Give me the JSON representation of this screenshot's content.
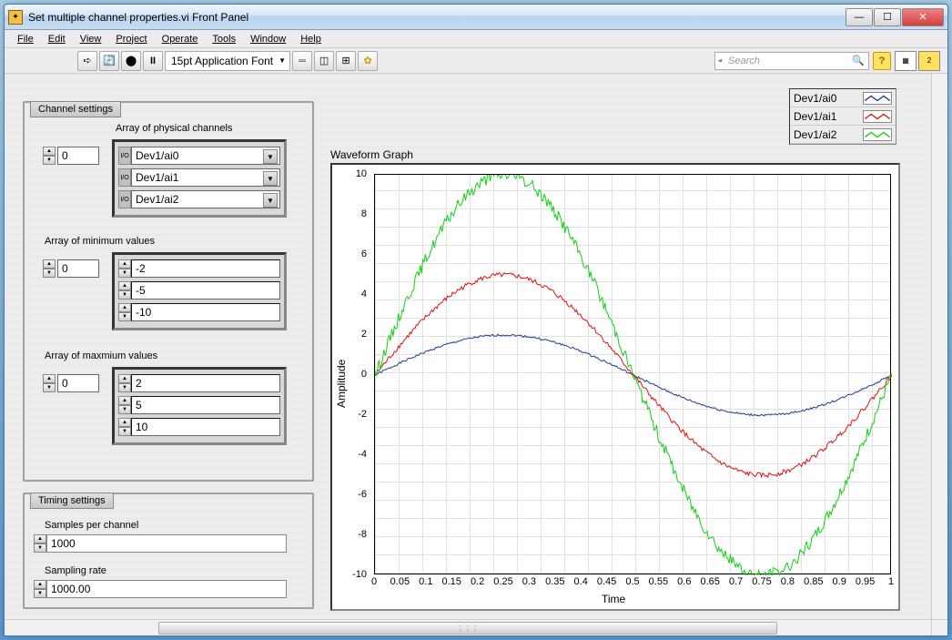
{
  "window": {
    "title": "Set multiple channel properties.vi Front Panel"
  },
  "menu": [
    "File",
    "Edit",
    "View",
    "Project",
    "Operate",
    "Tools",
    "Window",
    "Help"
  ],
  "toolbar": {
    "font": "15pt Application Font",
    "search_placeholder": "Search"
  },
  "channel_settings": {
    "label": "Channel settings",
    "physical": {
      "label": "Array of physical channels",
      "index": "0",
      "items": [
        "Dev1/ai0",
        "Dev1/ai1",
        "Dev1/ai2"
      ]
    },
    "min": {
      "label": "Array of minimum values",
      "index": "0",
      "items": [
        "-2",
        "-5",
        "-10"
      ]
    },
    "max": {
      "label": "Array of maxmium values",
      "index": "0",
      "items": [
        "2",
        "5",
        "10"
      ]
    }
  },
  "timing_settings": {
    "label": "Timing settings",
    "samples_label": "Samples per channel",
    "samples": "1000",
    "rate_label": "Sampling rate",
    "rate": "1000.00"
  },
  "graph": {
    "title": "Waveform Graph",
    "ylabel": "Amplitude",
    "xlabel": "Time",
    "ylim": [
      -10,
      10
    ],
    "xlim": [
      0,
      1
    ],
    "yticks": [
      -10,
      -8,
      -6,
      -4,
      -2,
      0,
      2,
      4,
      6,
      8,
      10
    ],
    "xticks": [
      "0",
      "0.05",
      "0.1",
      "0.15",
      "0.2",
      "0.25",
      "0.3",
      "0.35",
      "0.4",
      "0.45",
      "0.5",
      "0.55",
      "0.6",
      "0.65",
      "0.7",
      "0.75",
      "0.8",
      "0.85",
      "0.9",
      "0.95",
      "1"
    ],
    "series": [
      {
        "name": "Dev1/ai0",
        "color": "#1f3a93",
        "amplitude": 2,
        "noise": 0.05
      },
      {
        "name": "Dev1/ai1",
        "color": "#e01010",
        "amplitude": 5,
        "noise": 0.12
      },
      {
        "name": "Dev1/ai2",
        "color": "#10d010",
        "amplitude": 10,
        "noise": 0.3
      }
    ]
  },
  "legend": [
    {
      "label": "Dev1/ai0",
      "color": "#1f3a93"
    },
    {
      "label": "Dev1/ai1",
      "color": "#e01010"
    },
    {
      "label": "Dev1/ai2",
      "color": "#10d010"
    }
  ]
}
